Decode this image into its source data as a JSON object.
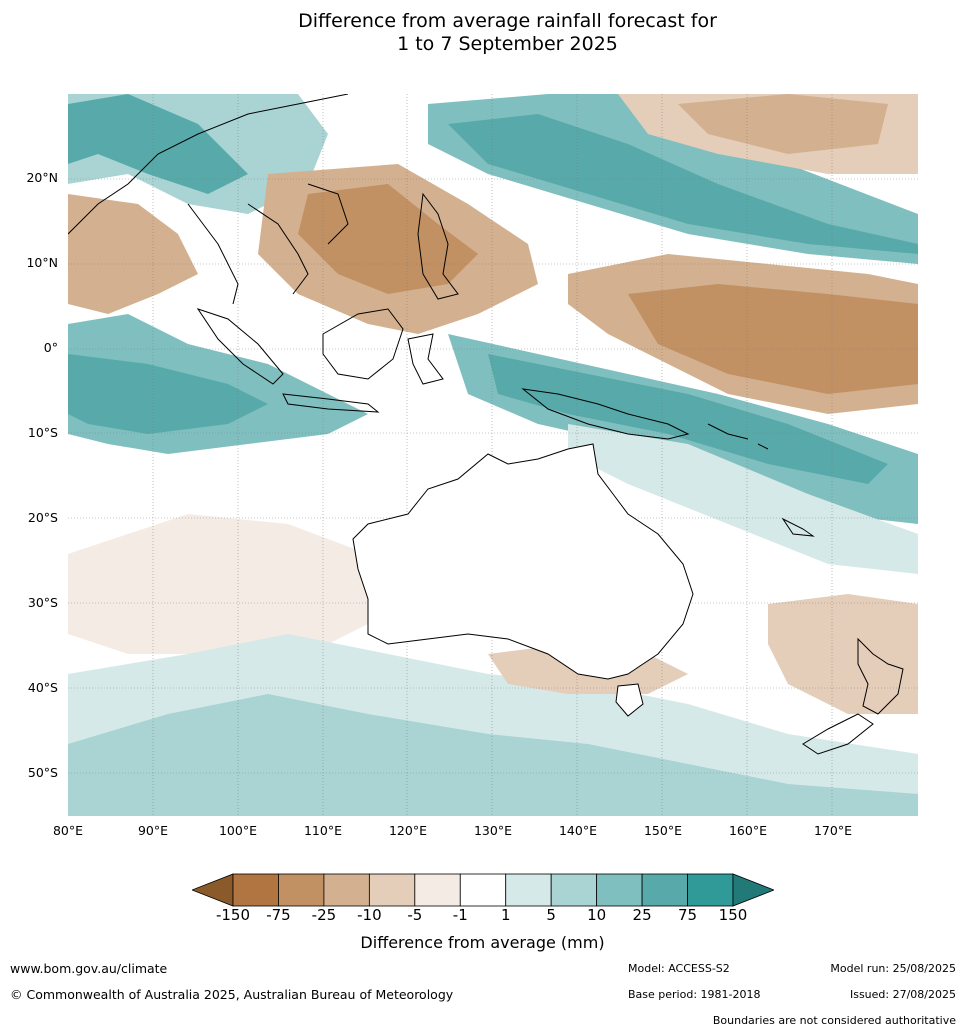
{
  "title": {
    "line1": "Difference from average rainfall forecast for",
    "line2": "1 to 7 September 2025"
  },
  "map": {
    "lat_labels": [
      "20°N",
      "10°N",
      "0°",
      "10°S",
      "20°S",
      "30°S",
      "40°S",
      "50°S"
    ],
    "lon_labels": [
      "80°E",
      "90°E",
      "100°E",
      "110°E",
      "120°E",
      "130°E",
      "140°E",
      "150°E",
      "160°E",
      "170°E"
    ]
  },
  "legend": {
    "tick_labels": [
      "-150",
      "-75",
      "-25",
      "-10",
      "-5",
      "-1",
      "1",
      "5",
      "10",
      "25",
      "75",
      "150"
    ],
    "colors": [
      "#8b5a2b",
      "#b07540",
      "#c19164",
      "#d3b08f",
      "#e4cdb9",
      "#f4ebe4",
      "#ffffff",
      "#d5e9e8",
      "#a9d4d3",
      "#80bfbf",
      "#58aaaa",
      "#2f9a98",
      "#217a78"
    ],
    "title": "Difference from average (mm)"
  },
  "footer": {
    "website": "www.bom.gov.au/climate",
    "copyright": "© Commonwealth of Australia 2025, Australian Bureau of Meteorology",
    "model": "Model: ACCESS-S2",
    "model_run": "Model run: 25/08/2025",
    "base_period": "Base period: 1981-2018",
    "issued": "Issued: 27/08/2025",
    "disclaimer": "Boundaries are not considered authoritative"
  }
}
